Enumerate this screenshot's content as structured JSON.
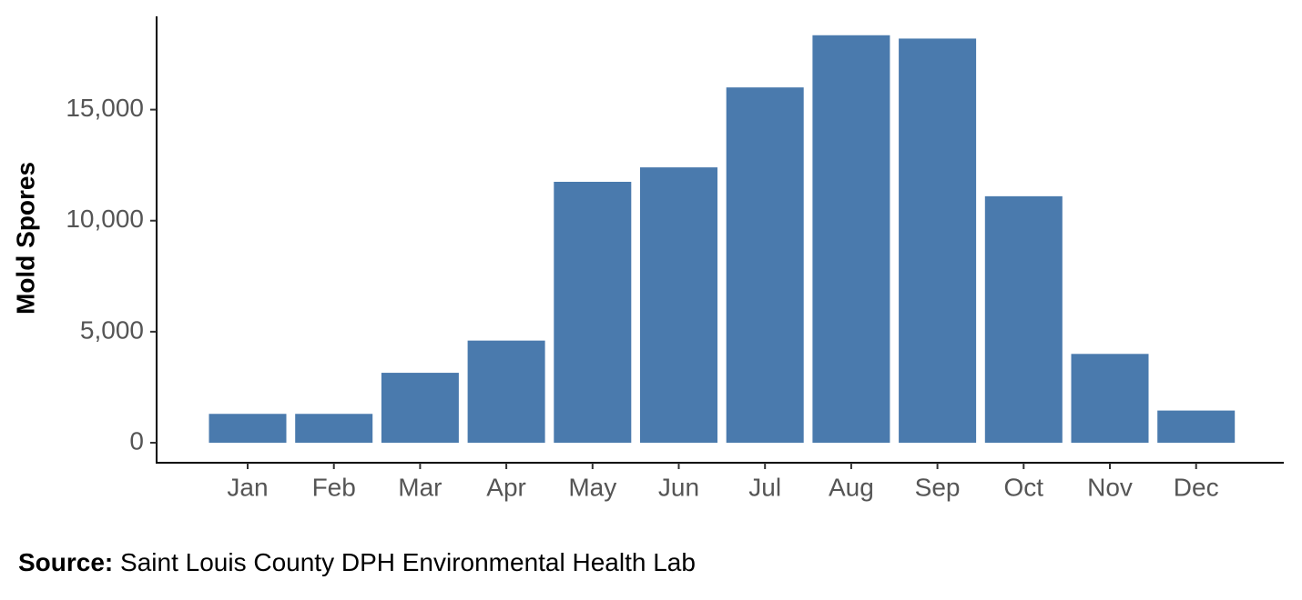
{
  "chart_data": {
    "type": "bar",
    "y_label": "Mold Spores",
    "categories": [
      "Jan",
      "Feb",
      "Mar",
      "Apr",
      "May",
      "Jun",
      "Jul",
      "Aug",
      "Sep",
      "Oct",
      "Nov",
      "Dec"
    ],
    "values": [
      1300,
      1300,
      3150,
      4600,
      11750,
      12400,
      16000,
      18350,
      18200,
      11100,
      4000,
      1450
    ],
    "color": "#4a7aad",
    "ylim": [
      -900,
      19200
    ],
    "yticks": [
      0,
      {
        "value": 5000,
        "label": "5,000"
      },
      {
        "value": 10000,
        "label": "10,000"
      },
      {
        "value": 15000,
        "label": "15,000"
      }
    ],
    "grid": false
  },
  "source": {
    "label": "Source:",
    "text": "Saint Louis County DPH Environmental Health Lab"
  }
}
